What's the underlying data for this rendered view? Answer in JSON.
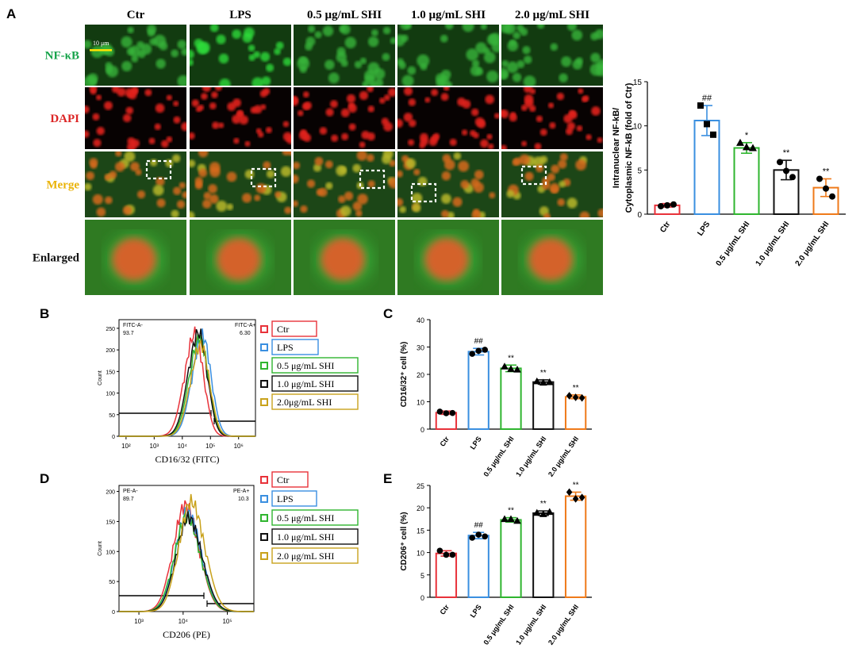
{
  "panel_letters": [
    "A",
    "B",
    "C",
    "D",
    "E"
  ],
  "colors": {
    "ctr": "#e8323a",
    "lps": "#3a8fe0",
    "shi05": "#2fb52f",
    "shi10": "#111111",
    "shi20": "#ef7a1a",
    "legend_gold": "#c9a21c",
    "nfkb_label": "#16a34a",
    "dapi_label": "#dc2626",
    "merge_label": "#eab308",
    "scale_bar": "#ffe100"
  },
  "panel_a": {
    "column_headers": [
      "Ctr",
      "LPS",
      "0.5 µg/mL SHI",
      "1.0 µg/mL SHI",
      "2.0 µg/mL SHI"
    ],
    "row_labels": [
      "NF-κB",
      "DAPI",
      "Merge",
      "Enlarged"
    ],
    "scale_bar_label": "10 μm"
  },
  "chart_data": [
    {
      "id": "A",
      "type": "bar",
      "categories": [
        "Ctr",
        "LPS",
        "0.5 μg/mL SHI",
        "1.0 μg/mL SHI",
        "2.0 μg/mL SHI"
      ],
      "values": [
        1.0,
        10.6,
        7.5,
        5.0,
        3.0
      ],
      "errors": [
        0.2,
        1.7,
        0.6,
        1.1,
        1.0
      ],
      "points": [
        [
          0.9,
          1.0,
          1.1
        ],
        [
          12.3,
          10.2,
          9.0
        ],
        [
          8.1,
          7.6,
          7.5
        ],
        [
          5.9,
          4.9,
          4.2
        ],
        [
          4.0,
          2.9,
          2.0
        ]
      ],
      "markers": [
        "circle",
        "square",
        "triangle",
        "circle",
        "circle"
      ],
      "annotations": [
        "",
        "##",
        "*",
        "**",
        "**"
      ],
      "ylabel": "Intranuclear NF-kB/ Cytoplasmic NF-kB (fold of Ctr)",
      "ylabel_lines": [
        "Intranuclear NF-kB/",
        "Cytoplasmic NF-kB (fold of Ctr)"
      ],
      "xlabel": "",
      "ylim": [
        0,
        15
      ],
      "yticks": [
        0,
        5,
        10,
        15
      ]
    },
    {
      "id": "C",
      "type": "bar",
      "categories": [
        "Ctr",
        "LPS",
        "0.5 μg/mL SHI",
        "1.0 μg/mL SHI",
        "2.0 μg/mL SHI"
      ],
      "values": [
        6.0,
        28.3,
        22.2,
        17.2,
        11.8
      ],
      "errors": [
        0.6,
        1.2,
        1.2,
        0.8,
        0.7
      ],
      "points": [
        [
          6.4,
          5.8,
          5.9
        ],
        [
          27.5,
          28.6,
          29.0
        ],
        [
          22.9,
          22.0,
          21.8
        ],
        [
          17.5,
          17.0,
          17.2
        ],
        [
          12.2,
          11.6,
          11.4
        ]
      ],
      "markers": [
        "circle",
        "circle",
        "triangle",
        "triangle",
        "diamond"
      ],
      "annotations": [
        "",
        "##",
        "**",
        "**",
        "**"
      ],
      "ylabel": "CD16/32⁺ cell (%)",
      "xlabel": "",
      "ylim": [
        0,
        40
      ],
      "yticks": [
        0,
        10,
        20,
        30,
        40
      ]
    },
    {
      "id": "E",
      "type": "bar",
      "categories": [
        "Ctr",
        "LPS",
        "0.5 μg/mL SHI",
        "1.0 μg/mL SHI",
        "2.0 μg/mL SHI"
      ],
      "values": [
        9.8,
        13.8,
        17.3,
        18.8,
        22.6
      ],
      "errors": [
        0.6,
        0.7,
        0.5,
        0.5,
        0.9
      ],
      "points": [
        [
          10.4,
          9.5,
          9.5
        ],
        [
          13.3,
          14.0,
          13.6
        ],
        [
          17.5,
          17.5,
          17.1
        ],
        [
          18.9,
          18.6,
          19.1
        ],
        [
          23.5,
          22.0,
          22.3
        ]
      ],
      "markers": [
        "circle",
        "circle",
        "triangle",
        "triangle",
        "diamond"
      ],
      "annotations": [
        "",
        "##",
        "**",
        "**",
        "**"
      ],
      "ylabel": "CD206⁺ cell (%)",
      "xlabel": "",
      "ylim": [
        0,
        25
      ],
      "yticks": [
        0,
        5,
        10,
        15,
        20,
        25
      ]
    },
    {
      "id": "B",
      "type": "line",
      "subtype": "flow-cytometry-histogram",
      "xlabel": "CD16/32 (FITC)",
      "ylabel": "Count",
      "x_scale": "log",
      "x_tick_labels": [
        "10²",
        "10³",
        "10⁴",
        "10⁵",
        "10⁶"
      ],
      "y_tick_labels": [
        "0",
        "50",
        "100",
        "150",
        "200",
        "250"
      ],
      "ylim": [
        0,
        270
      ],
      "gates": [
        {
          "label": "FITC-A-",
          "value": "93.7"
        },
        {
          "label": "FITC-A+",
          "value": "6.30"
        }
      ],
      "series": [
        {
          "name": "Ctr",
          "color": "#e8323a",
          "peak_log": 4.45,
          "peak": 255
        },
        {
          "name": "LPS",
          "color": "#3a8fe0",
          "peak_log": 4.72,
          "peak": 250
        },
        {
          "name": "0.5 μg/mL SHI",
          "color": "#2fb52f",
          "peak_log": 4.62,
          "peak": 245
        },
        {
          "name": "1.0 μg/mL SHI",
          "color": "#111111",
          "peak_log": 4.58,
          "peak": 258
        },
        {
          "name": "2.0μg/mL SHI",
          "color": "#c9a21c",
          "peak_log": 4.66,
          "peak": 228
        }
      ]
    },
    {
      "id": "D",
      "type": "line",
      "subtype": "flow-cytometry-histogram",
      "xlabel": "CD206 (PE)",
      "ylabel": "Count",
      "x_scale": "log",
      "x_tick_labels": [
        "10³",
        "10⁴",
        "10⁵"
      ],
      "y_tick_labels": [
        "0",
        "50",
        "100",
        "150",
        "200"
      ],
      "ylim": [
        0,
        210
      ],
      "gates": [
        {
          "label": "PE-A-",
          "value": "89.7"
        },
        {
          "label": "PE-A+",
          "value": "10.3"
        }
      ],
      "series": [
        {
          "name": "Ctr",
          "color": "#e8323a",
          "peak_log": 4.05,
          "peak": 190
        },
        {
          "name": "LPS",
          "color": "#3a8fe0",
          "peak_log": 4.1,
          "peak": 178
        },
        {
          "name": "0.5 μg/mL SHI",
          "color": "#2fb52f",
          "peak_log": 4.08,
          "peak": 170
        },
        {
          "name": "1.0 μg/mL SHI",
          "color": "#111111",
          "peak_log": 4.12,
          "peak": 168
        },
        {
          "name": "2.0 μg/mL SHI",
          "color": "#c9a21c",
          "peak_log": 4.18,
          "peak": 196
        }
      ]
    }
  ]
}
